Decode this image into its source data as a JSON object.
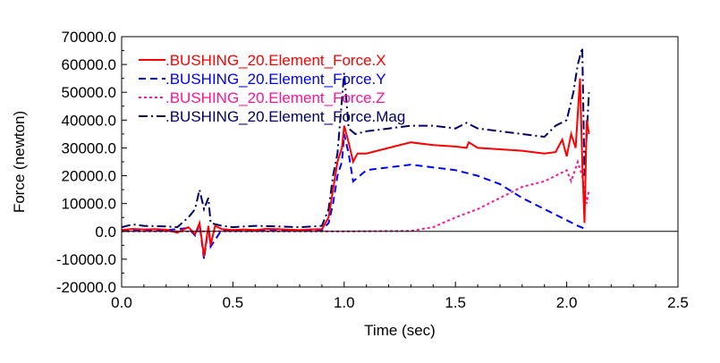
{
  "chart_data": {
    "type": "line",
    "title": "",
    "xlabel": "Time (sec)",
    "ylabel": "Force (newton)",
    "xlim": [
      0,
      2.5
    ],
    "ylim": [
      -20000,
      70000
    ],
    "xticks": [
      "0.0",
      "0.5",
      "1.0",
      "1.5",
      "2.0",
      "2.5"
    ],
    "yticks": [
      "-20000.0",
      "-10000.0",
      "0.0",
      "10000.0",
      "20000.0",
      "30000.0",
      "40000.0",
      "50000.0",
      "60000.0",
      "70000.0"
    ],
    "grid": false,
    "zero_line": true,
    "legend": "top-left",
    "series": [
      {
        "name": ".BUSHING_20.Element_Force.X",
        "color": "#ff0000",
        "style": "solid",
        "x": [
          0,
          0.05,
          0.1,
          0.15,
          0.2,
          0.25,
          0.3,
          0.33,
          0.35,
          0.37,
          0.39,
          0.4,
          0.42,
          0.45,
          0.5,
          0.55,
          0.6,
          0.65,
          0.7,
          0.75,
          0.8,
          0.85,
          0.9,
          0.93,
          0.95,
          0.97,
          0.99,
          1.0,
          1.02,
          1.04,
          1.06,
          1.1,
          1.2,
          1.3,
          1.4,
          1.5,
          1.55,
          1.56,
          1.6,
          1.7,
          1.8,
          1.9,
          1.95,
          1.98,
          2.0,
          2.02,
          2.04,
          2.06,
          2.07,
          2.08,
          2.09,
          2.1
        ],
        "y": [
          500,
          900,
          700,
          800,
          600,
          -500,
          1500,
          -1000,
          3000,
          -9000,
          2000,
          -5000,
          2000,
          800,
          500,
          700,
          500,
          900,
          800,
          600,
          500,
          700,
          800,
          5000,
          15000,
          25000,
          30000,
          38000,
          32000,
          25000,
          28000,
          28000,
          30000,
          32000,
          31000,
          30500,
          30000,
          32000,
          30000,
          29500,
          29000,
          28000,
          28500,
          33000,
          27000,
          35000,
          30000,
          55000,
          25000,
          3000,
          40000,
          35000
        ]
      },
      {
        "name": ".BUSHING_20.Element_Force.Y",
        "color": "#0000ff",
        "style": "dashed",
        "x": [
          0,
          0.1,
          0.2,
          0.3,
          0.33,
          0.35,
          0.37,
          0.39,
          0.4,
          0.45,
          0.5,
          0.6,
          0.7,
          0.8,
          0.9,
          0.93,
          0.95,
          0.97,
          0.99,
          1.0,
          1.02,
          1.04,
          1.1,
          1.2,
          1.3,
          1.4,
          1.5,
          1.6,
          1.7,
          1.8,
          1.9,
          2.0,
          2.05,
          2.08
        ],
        "y": [
          300,
          500,
          400,
          1200,
          -1500,
          2500,
          -10000,
          1500,
          -5500,
          600,
          300,
          400,
          500,
          300,
          500,
          3000,
          10000,
          20000,
          25000,
          35000,
          28000,
          18000,
          22000,
          23000,
          24000,
          23000,
          22000,
          20000,
          17000,
          12000,
          8000,
          4000,
          2000,
          1000
        ]
      },
      {
        "name": ".BUSHING_20.Element_Force.Z",
        "color": "#ff1493",
        "style": "dotted",
        "x": [
          0,
          0.5,
          1.0,
          1.3,
          1.4,
          1.5,
          1.6,
          1.7,
          1.8,
          1.9,
          1.95,
          2.0,
          2.02,
          2.05,
          2.07,
          2.09,
          2.1
        ],
        "y": [
          0,
          0,
          0,
          200,
          1500,
          5000,
          8000,
          12000,
          16000,
          18000,
          20000,
          22000,
          18000,
          25000,
          20000,
          10000,
          15000
        ]
      },
      {
        "name": ".BUSHING_20.Element_Force.Mag",
        "color": "#000066",
        "style": "dashdot",
        "x": [
          0,
          0.05,
          0.1,
          0.2,
          0.25,
          0.3,
          0.33,
          0.35,
          0.37,
          0.39,
          0.4,
          0.45,
          0.5,
          0.6,
          0.7,
          0.8,
          0.9,
          0.93,
          0.95,
          0.97,
          1.0,
          1.02,
          1.05,
          1.1,
          1.2,
          1.3,
          1.4,
          1.5,
          1.55,
          1.6,
          1.7,
          1.8,
          1.9,
          1.95,
          2.0,
          2.03,
          2.05,
          2.07,
          2.08,
          2.1
        ],
        "y": [
          1500,
          2500,
          2000,
          1800,
          1500,
          5000,
          8000,
          15000,
          8000,
          12000,
          3000,
          2000,
          1500,
          2000,
          1800,
          1500,
          2000,
          8000,
          20000,
          28000,
          57000,
          37000,
          35000,
          36000,
          37000,
          38000,
          38000,
          37000,
          39000,
          37000,
          36000,
          35000,
          34000,
          38000,
          40000,
          50000,
          60000,
          66000,
          20000,
          50000
        ]
      }
    ]
  }
}
